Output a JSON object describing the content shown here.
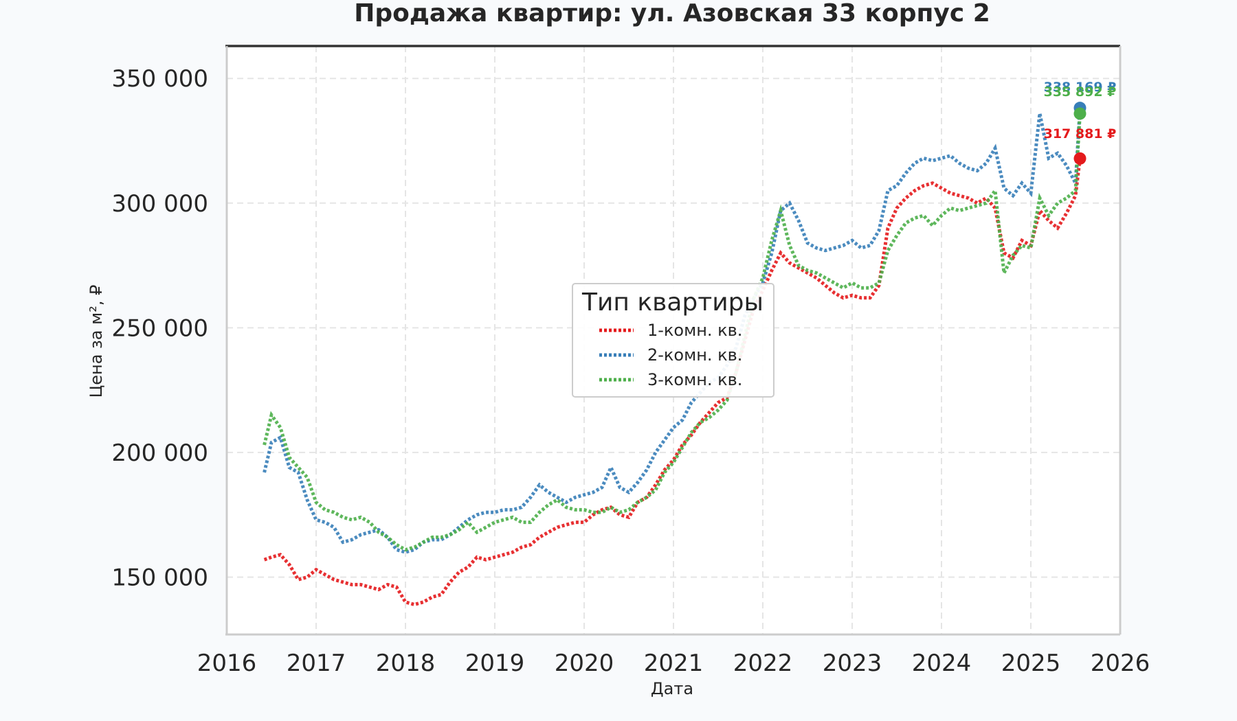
{
  "chart_data": {
    "type": "line",
    "title": "Продажа квартир: ул. Азовская 33 корпус 2",
    "xlabel": "Дата",
    "ylabel": "Цена за м², ₽",
    "xlim": [
      2016,
      2026
    ],
    "ylim": [
      127000,
      363000
    ],
    "x_ticks": [
      "2016",
      "2017",
      "2018",
      "2019",
      "2020",
      "2021",
      "2022",
      "2023",
      "2024",
      "2025",
      "2026"
    ],
    "y_ticks": [
      {
        "value": 150000,
        "label": "150 000"
      },
      {
        "value": 200000,
        "label": "200 000"
      },
      {
        "value": 250000,
        "label": "250 000"
      },
      {
        "value": 300000,
        "label": "300 000"
      },
      {
        "value": 350000,
        "label": "350 000"
      }
    ],
    "grid": true,
    "legend": {
      "title": "Тип квартиры",
      "placement": "center"
    },
    "series": [
      {
        "name": "1-комн. кв.",
        "color": "#e41a1c",
        "x": [
          2016.42,
          2016.5,
          2016.6,
          2016.7,
          2016.8,
          2016.9,
          2017.0,
          2017.1,
          2017.2,
          2017.3,
          2017.4,
          2017.5,
          2017.6,
          2017.7,
          2017.8,
          2017.9,
          2018.0,
          2018.1,
          2018.2,
          2018.3,
          2018.4,
          2018.5,
          2018.6,
          2018.7,
          2018.8,
          2018.9,
          2019.0,
          2019.1,
          2019.2,
          2019.3,
          2019.4,
          2019.5,
          2019.6,
          2019.7,
          2019.8,
          2019.9,
          2020.0,
          2020.1,
          2020.2,
          2020.3,
          2020.4,
          2020.5,
          2020.6,
          2020.7,
          2020.8,
          2020.9,
          2021.0,
          2021.1,
          2021.2,
          2021.3,
          2021.4,
          2021.5,
          2021.6,
          2021.7,
          2021.8,
          2021.9,
          2022.0,
          2022.1,
          2022.2,
          2022.3,
          2022.4,
          2022.5,
          2022.6,
          2022.7,
          2022.8,
          2022.9,
          2023.0,
          2023.1,
          2023.2,
          2023.3,
          2023.4,
          2023.5,
          2023.6,
          2023.7,
          2023.8,
          2023.9,
          2024.0,
          2024.1,
          2024.2,
          2024.3,
          2024.4,
          2024.5,
          2024.6,
          2024.7,
          2024.8,
          2024.9,
          2025.0,
          2025.1,
          2025.2,
          2025.3,
          2025.4,
          2025.5,
          2025.55
        ],
        "values": [
          157000,
          158000,
          159000,
          155000,
          149000,
          150000,
          153000,
          151000,
          149000,
          148000,
          147000,
          147000,
          146000,
          145000,
          147000,
          146000,
          140000,
          139000,
          140000,
          142000,
          143000,
          148000,
          152000,
          154000,
          158000,
          157000,
          158000,
          159000,
          160000,
          162000,
          163000,
          166000,
          168000,
          170000,
          171000,
          172000,
          172000,
          175000,
          177000,
          178000,
          175000,
          174000,
          180000,
          182000,
          187000,
          193000,
          197000,
          203000,
          207000,
          212000,
          216000,
          220000,
          222000,
          232000,
          245000,
          258000,
          265000,
          273000,
          280000,
          276000,
          274000,
          272000,
          270000,
          267000,
          264000,
          262000,
          263000,
          262000,
          262000,
          267000,
          290000,
          298000,
          302000,
          305000,
          307000,
          308000,
          306000,
          304000,
          303000,
          302000,
          300000,
          302000,
          298000,
          280000,
          278000,
          285000,
          283000,
          297000,
          293000,
          290000,
          296000,
          303000,
          317881
        ]
      },
      {
        "name": "2-комн. кв.",
        "color": "#377eb8",
        "x": [
          2016.42,
          2016.5,
          2016.6,
          2016.7,
          2016.8,
          2016.9,
          2017.0,
          2017.1,
          2017.2,
          2017.3,
          2017.4,
          2017.5,
          2017.6,
          2017.7,
          2017.8,
          2017.9,
          2018.0,
          2018.1,
          2018.2,
          2018.3,
          2018.4,
          2018.5,
          2018.6,
          2018.7,
          2018.8,
          2018.9,
          2019.0,
          2019.1,
          2019.2,
          2019.3,
          2019.4,
          2019.5,
          2019.6,
          2019.7,
          2019.8,
          2019.9,
          2020.0,
          2020.1,
          2020.2,
          2020.3,
          2020.4,
          2020.5,
          2020.6,
          2020.7,
          2020.8,
          2020.9,
          2021.0,
          2021.1,
          2021.2,
          2021.3,
          2021.4,
          2021.5,
          2021.6,
          2021.7,
          2021.8,
          2021.9,
          2022.0,
          2022.1,
          2022.2,
          2022.3,
          2022.4,
          2022.5,
          2022.6,
          2022.7,
          2022.8,
          2022.9,
          2023.0,
          2023.1,
          2023.2,
          2023.3,
          2023.4,
          2023.5,
          2023.6,
          2023.7,
          2023.8,
          2023.9,
          2024.0,
          2024.1,
          2024.2,
          2024.3,
          2024.4,
          2024.5,
          2024.6,
          2024.7,
          2024.8,
          2024.9,
          2025.0,
          2025.1,
          2025.2,
          2025.3,
          2025.4,
          2025.5,
          2025.55
        ],
        "values": [
          192000,
          204000,
          206000,
          194000,
          192000,
          181000,
          173000,
          172000,
          170000,
          164000,
          165000,
          167000,
          168000,
          169000,
          166000,
          161000,
          160000,
          161000,
          164000,
          165000,
          165000,
          167000,
          170000,
          173000,
          175000,
          176000,
          176000,
          177000,
          177000,
          178000,
          182000,
          187000,
          184000,
          182000,
          180000,
          182000,
          183000,
          184000,
          186000,
          194000,
          186000,
          184000,
          188000,
          193000,
          200000,
          205000,
          210000,
          213000,
          220000,
          224000,
          228000,
          230000,
          235000,
          242000,
          255000,
          262000,
          268000,
          280000,
          297000,
          300000,
          293000,
          284000,
          282000,
          281000,
          282000,
          283000,
          285000,
          282000,
          283000,
          289000,
          305000,
          307000,
          312000,
          316000,
          318000,
          317000,
          318000,
          319000,
          316000,
          314000,
          313000,
          316000,
          322000,
          306000,
          303000,
          308000,
          304000,
          336000,
          318000,
          320000,
          315000,
          308000,
          338169
        ]
      },
      {
        "name": "3-комн. кв.",
        "color": "#4daf4a",
        "x": [
          2016.42,
          2016.5,
          2016.6,
          2016.7,
          2016.8,
          2016.9,
          2017.0,
          2017.1,
          2017.2,
          2017.3,
          2017.4,
          2017.5,
          2017.6,
          2017.7,
          2017.8,
          2017.9,
          2018.0,
          2018.1,
          2018.2,
          2018.3,
          2018.4,
          2018.5,
          2018.6,
          2018.7,
          2018.8,
          2018.9,
          2019.0,
          2019.1,
          2019.2,
          2019.3,
          2019.4,
          2019.5,
          2019.6,
          2019.7,
          2019.8,
          2019.9,
          2020.0,
          2020.1,
          2020.2,
          2020.3,
          2020.4,
          2020.5,
          2020.6,
          2020.7,
          2020.8,
          2020.9,
          2021.0,
          2021.1,
          2021.2,
          2021.3,
          2021.4,
          2021.5,
          2021.6,
          2021.7,
          2021.8,
          2021.9,
          2022.0,
          2022.1,
          2022.2,
          2022.3,
          2022.4,
          2022.5,
          2022.6,
          2022.7,
          2022.8,
          2022.9,
          2023.0,
          2023.1,
          2023.2,
          2023.3,
          2023.4,
          2023.5,
          2023.6,
          2023.7,
          2023.8,
          2023.9,
          2024.0,
          2024.1,
          2024.2,
          2024.3,
          2024.4,
          2024.5,
          2024.6,
          2024.7,
          2024.8,
          2024.9,
          2025.0,
          2025.1,
          2025.2,
          2025.3,
          2025.4,
          2025.5,
          2025.55
        ],
        "values": [
          203000,
          215000,
          210000,
          198000,
          194000,
          190000,
          180000,
          177000,
          176000,
          174000,
          173000,
          174000,
          172000,
          168000,
          166000,
          163000,
          161000,
          162000,
          164000,
          166000,
          166000,
          167000,
          169000,
          172000,
          168000,
          170000,
          172000,
          173000,
          174000,
          172000,
          172000,
          176000,
          179000,
          181000,
          178000,
          177000,
          177000,
          176000,
          176000,
          178000,
          176000,
          177000,
          180000,
          182000,
          185000,
          192000,
          196000,
          202000,
          208000,
          212000,
          214000,
          217000,
          221000,
          232000,
          247000,
          262000,
          270000,
          285000,
          297000,
          283000,
          275000,
          273000,
          272000,
          270000,
          268000,
          266000,
          268000,
          266000,
          266000,
          268000,
          281000,
          287000,
          292000,
          294000,
          295000,
          291000,
          295000,
          298000,
          297000,
          298000,
          299000,
          300000,
          305000,
          272000,
          279000,
          283000,
          282000,
          302000,
          295000,
          300000,
          302000,
          305000,
          335892
        ]
      }
    ],
    "annotations": [
      {
        "series": "1-комн. кв.",
        "label": "317 881 ₽",
        "value": 317881
      },
      {
        "series": "2-комн. кв.",
        "label": "338 169 ₽",
        "value": 338169
      },
      {
        "series": "3-комн. кв.",
        "label": "335 892 ₽",
        "value": 335892
      }
    ]
  }
}
